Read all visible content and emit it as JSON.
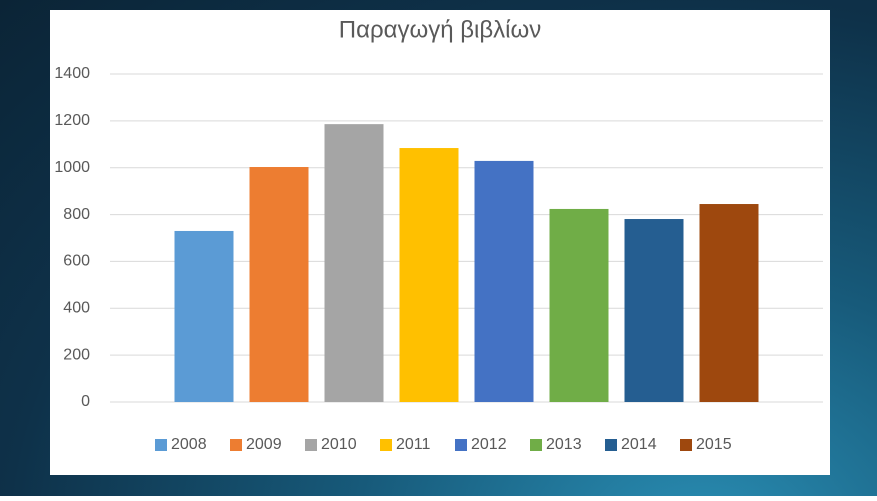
{
  "chart_data": {
    "type": "bar",
    "title": "Παραγωγή βιβλίων",
    "categories": [
      null
    ],
    "series": [
      {
        "name": "2008",
        "color": "#5b9bd5",
        "values": [
          730
        ]
      },
      {
        "name": "2009",
        "color": "#ed7d31",
        "values": [
          1003
        ]
      },
      {
        "name": "2010",
        "color": "#a5a5a5",
        "values": [
          1186
        ]
      },
      {
        "name": "2011",
        "color": "#ffc000",
        "values": [
          1084
        ]
      },
      {
        "name": "2012",
        "color": "#4472c4",
        "values": [
          1029
        ]
      },
      {
        "name": "2013",
        "color": "#70ad47",
        "values": [
          824
        ]
      },
      {
        "name": "2014",
        "color": "#255e91",
        "values": [
          781
        ]
      },
      {
        "name": "2015",
        "color": "#9e480e",
        "values": [
          845
        ]
      }
    ],
    "ylim": [
      0,
      1400
    ],
    "yticks": [
      0,
      200,
      400,
      600,
      800,
      1000,
      1200,
      1400
    ],
    "grid": true,
    "legend": "bottom"
  }
}
